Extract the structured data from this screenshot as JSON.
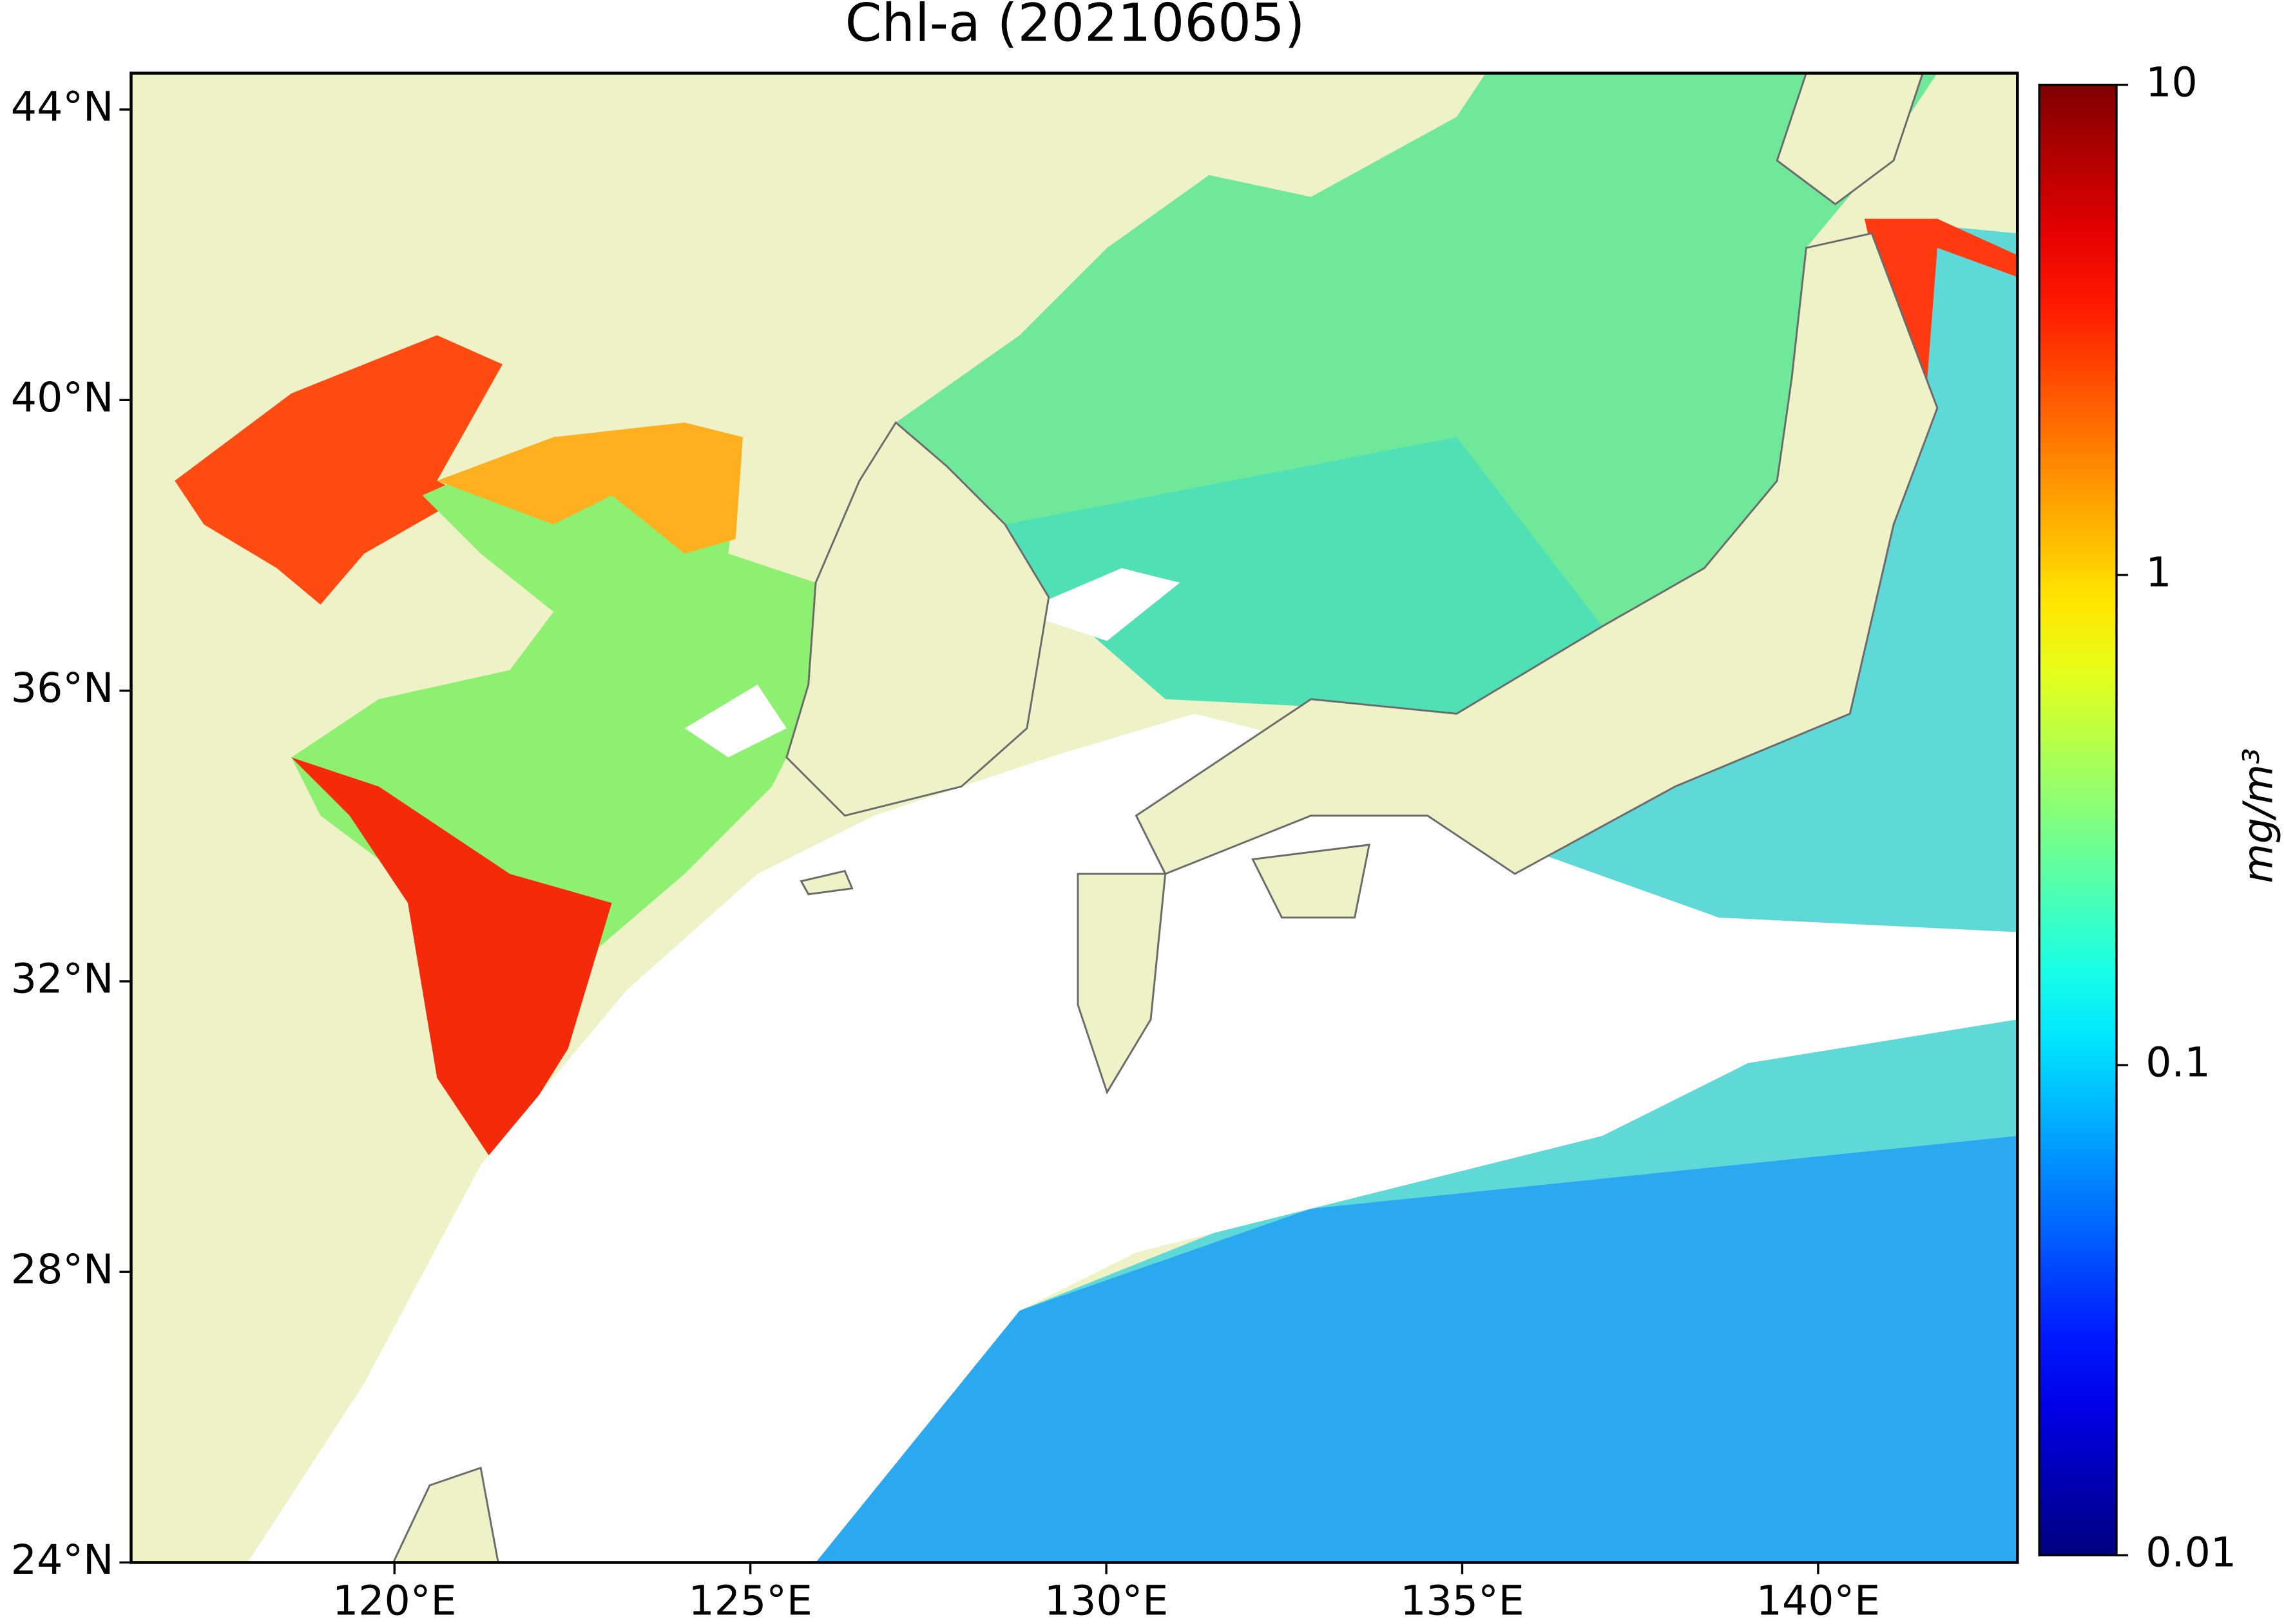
{
  "chart_data": {
    "type": "map",
    "title": "Chl-a (20210605)",
    "xlim": [
      116.3,
      142.8
    ],
    "ylim": [
      24,
      44.5
    ],
    "xticks": [
      {
        "value": 120,
        "label": "120°E"
      },
      {
        "value": 125,
        "label": "125°E"
      },
      {
        "value": 130,
        "label": "130°E"
      },
      {
        "value": 135,
        "label": "135°E"
      },
      {
        "value": 140,
        "label": "140°E"
      }
    ],
    "yticks": [
      {
        "value": 24,
        "label": "24°N"
      },
      {
        "value": 28,
        "label": "28°N"
      },
      {
        "value": 32,
        "label": "32°N"
      },
      {
        "value": 36,
        "label": "36°N"
      },
      {
        "value": 40,
        "label": "40°N"
      },
      {
        "value": 44,
        "label": "44°N"
      }
    ],
    "land_color": "#eff2c7",
    "colorbar": {
      "label": "mg/m³",
      "colormap": "jet",
      "log_scale": true,
      "clim": [
        0.01,
        10
      ],
      "ticks": [
        0.01,
        0.1,
        1,
        10
      ]
    }
  }
}
